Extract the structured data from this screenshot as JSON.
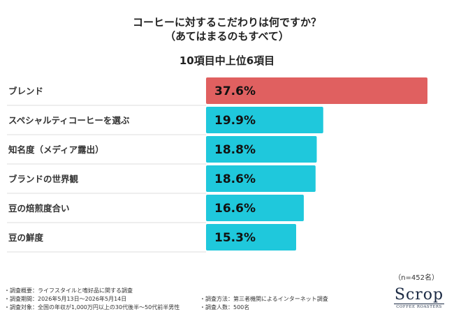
{
  "header": {
    "title_line1": "コーヒーに対するこだわりは何ですか？",
    "title_line2": "（あてはまるのもすべて）",
    "subtitle": "10項目中上位6項目"
  },
  "chart_data": {
    "type": "bar",
    "orientation": "horizontal",
    "categories": [
      "ブレンド",
      "スペシャルティコーヒーを選ぶ",
      "知名度（メディア露出）",
      "ブランドの世界観",
      "豆の焙煎度合い",
      "豆の鮮度"
    ],
    "values": [
      37.6,
      19.9,
      18.8,
      18.6,
      16.6,
      15.3
    ],
    "value_labels": [
      "37.6%",
      "19.9%",
      "18.8%",
      "18.6%",
      "16.6%",
      "15.3%"
    ],
    "unit": "%",
    "xlim": [
      0,
      37.6
    ],
    "colors": {
      "highlight": "#e06060",
      "default": "#1fc8dc",
      "separator": "#dddddd"
    },
    "highlight_index": 0,
    "grid": false
  },
  "footer": {
    "sample_size": "（n=452名）",
    "notes_left": [
      "・調査概要：ライフスタイルと嗜好品に関する調査",
      "・調査期間：2026年5月13日〜2026年5月14日",
      "・調査対象：全国の年収が1,000万円以上の30代後半〜50代前半男性"
    ],
    "notes_right": [
      "・調査方法：第三者機関によるインターネット調査",
      "・調査人数：500名"
    ],
    "logo_main": "Scrop",
    "logo_sub": "COFFEE ROASTERS"
  }
}
